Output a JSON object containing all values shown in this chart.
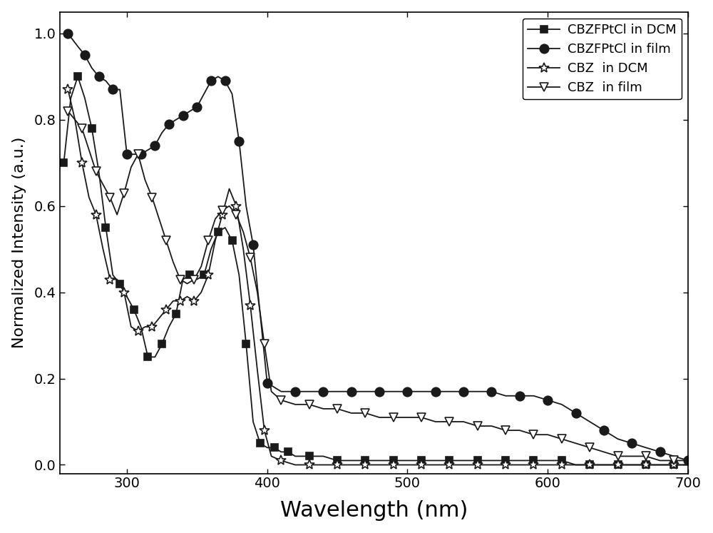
{
  "title": "",
  "xlabel": "Wavelength (nm)",
  "ylabel": "Normalized Intensity (a.u.)",
  "xlim": [
    252,
    700
  ],
  "ylim": [
    -0.02,
    1.05
  ],
  "xticks": [
    300,
    400,
    500,
    600,
    700
  ],
  "yticks": [
    0.0,
    0.2,
    0.4,
    0.6,
    0.8,
    1.0
  ],
  "background_color": "#ffffff",
  "line_color": "#1a1a1a",
  "series": {
    "CBZFPtCl_DCM": {
      "label": "CBZFPtCl in DCM",
      "marker": "s",
      "markersize": 7,
      "markerfacecolor": "#1a1a1a",
      "markeredgecolor": "#1a1a1a",
      "markevery": 2,
      "x": [
        255,
        260,
        265,
        270,
        275,
        280,
        285,
        290,
        295,
        300,
        305,
        310,
        315,
        320,
        325,
        330,
        335,
        340,
        345,
        350,
        355,
        360,
        365,
        370,
        375,
        380,
        385,
        390,
        395,
        400,
        405,
        410,
        415,
        420,
        430,
        440,
        450,
        460,
        470,
        480,
        490,
        500,
        510,
        520,
        530,
        540,
        550,
        560,
        570,
        580,
        590,
        600,
        610,
        620,
        630,
        640,
        650,
        660,
        670,
        680,
        690,
        700
      ],
      "y": [
        0.7,
        0.85,
        0.9,
        0.85,
        0.78,
        0.68,
        0.55,
        0.44,
        0.42,
        0.39,
        0.36,
        0.32,
        0.25,
        0.25,
        0.28,
        0.32,
        0.35,
        0.43,
        0.44,
        0.43,
        0.44,
        0.5,
        0.54,
        0.55,
        0.52,
        0.44,
        0.28,
        0.1,
        0.05,
        0.04,
        0.04,
        0.03,
        0.03,
        0.02,
        0.02,
        0.02,
        0.01,
        0.01,
        0.01,
        0.01,
        0.01,
        0.01,
        0.01,
        0.01,
        0.01,
        0.01,
        0.01,
        0.01,
        0.01,
        0.01,
        0.01,
        0.01,
        0.01,
        0.0,
        0.0,
        0.0,
        0.0,
        0.0,
        0.0,
        0.0,
        0.0,
        0.0
      ]
    },
    "CBZFPtCl_film": {
      "label": "CBZFPtCl in film",
      "marker": "o",
      "markersize": 9,
      "markerfacecolor": "#1a1a1a",
      "markeredgecolor": "#1a1a1a",
      "markevery": 2,
      "x": [
        258,
        265,
        270,
        275,
        280,
        285,
        290,
        295,
        300,
        305,
        310,
        315,
        320,
        325,
        330,
        335,
        340,
        345,
        350,
        355,
        360,
        365,
        370,
        375,
        380,
        385,
        390,
        395,
        400,
        410,
        420,
        430,
        440,
        450,
        460,
        470,
        480,
        490,
        500,
        510,
        520,
        530,
        540,
        550,
        560,
        570,
        580,
        590,
        600,
        610,
        620,
        630,
        640,
        650,
        660,
        670,
        680,
        690,
        700
      ],
      "y": [
        1.0,
        0.97,
        0.95,
        0.92,
        0.9,
        0.89,
        0.87,
        0.87,
        0.72,
        0.72,
        0.72,
        0.73,
        0.74,
        0.77,
        0.79,
        0.8,
        0.81,
        0.82,
        0.83,
        0.86,
        0.89,
        0.9,
        0.89,
        0.86,
        0.75,
        0.6,
        0.51,
        0.35,
        0.19,
        0.17,
        0.17,
        0.17,
        0.17,
        0.17,
        0.17,
        0.17,
        0.17,
        0.17,
        0.17,
        0.17,
        0.17,
        0.17,
        0.17,
        0.17,
        0.17,
        0.16,
        0.16,
        0.16,
        0.15,
        0.14,
        0.12,
        0.1,
        0.08,
        0.06,
        0.05,
        0.04,
        0.03,
        0.02,
        0.01
      ]
    },
    "CBZ_DCM": {
      "label": "CBZ  in DCM",
      "marker": "*",
      "markersize": 10,
      "markerfacecolor": "white",
      "markeredgecolor": "#1a1a1a",
      "markevery": 2,
      "x": [
        258,
        263,
        268,
        273,
        278,
        283,
        288,
        293,
        298,
        303,
        308,
        313,
        318,
        323,
        328,
        333,
        338,
        343,
        348,
        353,
        358,
        363,
        368,
        373,
        378,
        383,
        388,
        393,
        398,
        403,
        410,
        420,
        430,
        440,
        450,
        460,
        470,
        480,
        490,
        500,
        510,
        520,
        530,
        540,
        550,
        560,
        570,
        580,
        590,
        600,
        610,
        620,
        630,
        640,
        650,
        660,
        670,
        680,
        690,
        700
      ],
      "y": [
        0.87,
        0.8,
        0.7,
        0.62,
        0.58,
        0.5,
        0.43,
        0.43,
        0.4,
        0.32,
        0.31,
        0.32,
        0.32,
        0.34,
        0.36,
        0.38,
        0.38,
        0.39,
        0.38,
        0.4,
        0.44,
        0.52,
        0.58,
        0.64,
        0.6,
        0.5,
        0.37,
        0.22,
        0.08,
        0.02,
        0.01,
        0.0,
        0.0,
        0.0,
        0.0,
        0.0,
        0.0,
        0.0,
        0.0,
        0.0,
        0.0,
        0.0,
        0.0,
        0.0,
        0.0,
        0.0,
        0.0,
        0.0,
        0.0,
        0.0,
        0.0,
        0.0,
        0.0,
        0.0,
        0.0,
        0.0,
        0.0,
        0.0,
        0.0,
        0.0
      ]
    },
    "CBZ_film": {
      "label": "CBZ  in film",
      "marker": "v",
      "markersize": 9,
      "markerfacecolor": "white",
      "markeredgecolor": "#1a1a1a",
      "markevery": 2,
      "x": [
        258,
        263,
        268,
        273,
        278,
        283,
        288,
        293,
        298,
        303,
        308,
        313,
        318,
        323,
        328,
        333,
        338,
        343,
        348,
        353,
        358,
        363,
        368,
        373,
        378,
        383,
        388,
        393,
        398,
        403,
        410,
        420,
        430,
        440,
        450,
        460,
        470,
        480,
        490,
        500,
        510,
        520,
        530,
        540,
        550,
        560,
        570,
        580,
        590,
        600,
        610,
        620,
        630,
        640,
        650,
        660,
        670,
        680,
        690,
        700
      ],
      "y": [
        0.82,
        0.8,
        0.78,
        0.73,
        0.68,
        0.65,
        0.62,
        0.58,
        0.63,
        0.69,
        0.72,
        0.66,
        0.62,
        0.57,
        0.52,
        0.47,
        0.43,
        0.42,
        0.43,
        0.46,
        0.52,
        0.57,
        0.59,
        0.6,
        0.58,
        0.54,
        0.48,
        0.4,
        0.28,
        0.17,
        0.15,
        0.14,
        0.14,
        0.13,
        0.13,
        0.12,
        0.12,
        0.11,
        0.11,
        0.11,
        0.11,
        0.1,
        0.1,
        0.1,
        0.09,
        0.09,
        0.08,
        0.08,
        0.07,
        0.07,
        0.06,
        0.05,
        0.04,
        0.03,
        0.02,
        0.02,
        0.02,
        0.01,
        0.01,
        0.01
      ]
    }
  },
  "legend_loc": "upper right",
  "legend_fontsize": 13,
  "xlabel_fontsize": 22,
  "ylabel_fontsize": 16,
  "tick_fontsize": 14,
  "linewidth": 1.3
}
